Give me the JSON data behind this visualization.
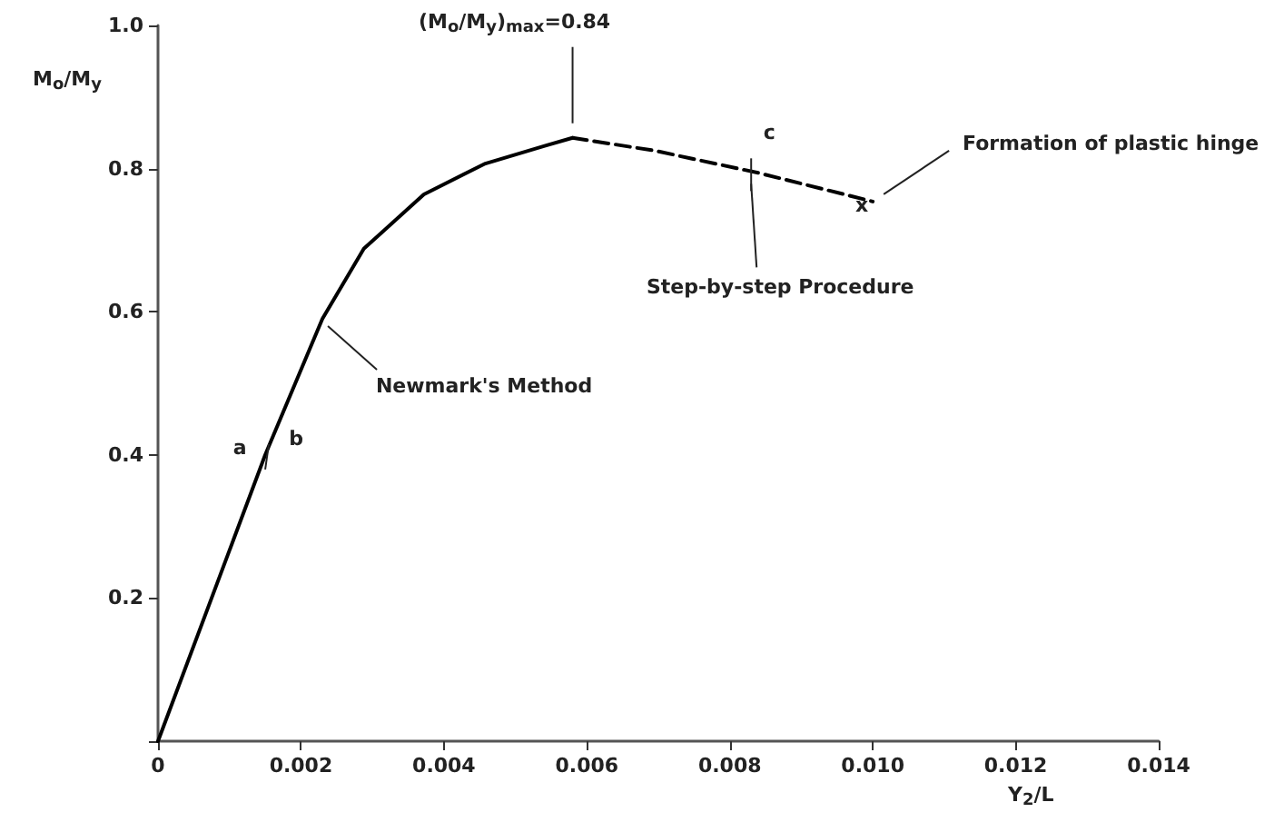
{
  "chart_data": {
    "type": "line",
    "xlabel": "Y$_{2}$/L",
    "ylabel": "M$_{o}$/M$_{y}$",
    "series": [
      {
        "color": "#000000",
        "line_style": "solid",
        "x": [
          0,
          0.0015,
          0.0023,
          0.00288,
          0.00372,
          0.00458,
          0.00542,
          0.0058
        ],
        "values": [
          0,
          0.4,
          0.59,
          0.688,
          0.764,
          0.807,
          0.832,
          0.843
        ]
      },
      {
        "color": "#000000",
        "line_style": "dashed",
        "x": [
          0.0058,
          0.00695,
          0.0084,
          0.01
        ],
        "values": [
          0.843,
          0.825,
          0.794,
          0.754
        ]
      }
    ],
    "annotations": [
      {
        "text": "(M$_{o}$/M$_{y}$)$_{max}$=0.84",
        "x": 0.0058,
        "y": 0.843
      },
      {
        "text": "Newmark's Method",
        "x": 0.0023,
        "y": 0.59
      },
      {
        "text": "a",
        "x": 0.0015,
        "y": 0.4
      },
      {
        "text": "b",
        "x": 0.0015,
        "y": 0.4
      },
      {
        "text": "c",
        "x": 0.0084,
        "y": 0.794
      },
      {
        "text": "Step-by-step Procedure",
        "x": 0.0084,
        "y": 0.794
      },
      {
        "text": "x",
        "x": 0.01,
        "y": 0.754
      },
      {
        "text": "Formation of plastic hinge",
        "x": 0.01,
        "y": 0.754
      }
    ],
    "xlim": [
      0,
      0.014
    ],
    "xticks": [
      0,
      0.002,
      0.004,
      0.006,
      0.008,
      {
        "value": 0.01,
        "label": "0.010"
      },
      0.012,
      0.014
    ],
    "ylim": [
      0,
      1.0
    ],
    "yticks": [
      {
        "value": 0,
        "label": null
      },
      0.2,
      0.4,
      0.6,
      0.8,
      {
        "value": 1.0,
        "label": "1.0"
      }
    ],
    "grid": false,
    "marker": "none"
  }
}
